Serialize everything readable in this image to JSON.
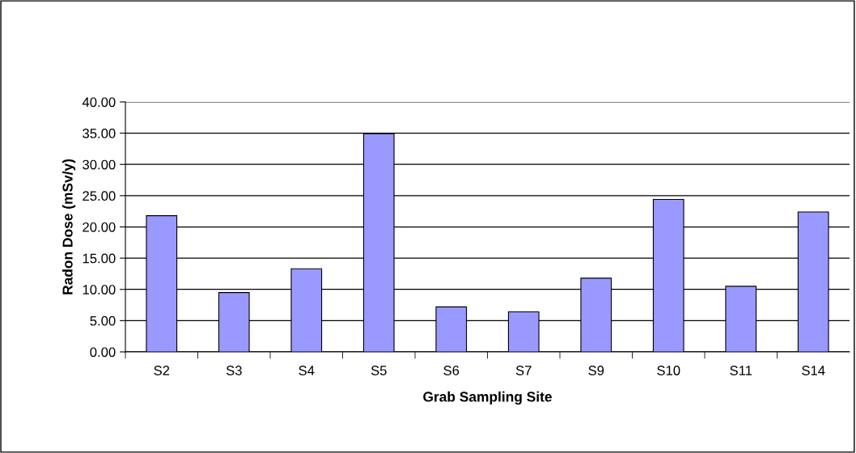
{
  "chart_data": {
    "type": "bar",
    "xlabel": "Grab Sampling Site",
    "ylabel": "Radon Dose (mSv/y)",
    "categories": [
      "S2",
      "S3",
      "S4",
      "S5",
      "S6",
      "S7",
      "S9",
      "S10",
      "S11",
      "S14"
    ],
    "values": [
      21.8,
      9.5,
      13.3,
      34.9,
      7.2,
      6.4,
      11.8,
      24.4,
      10.5,
      22.4
    ],
    "color": "#9999ff",
    "ylim": [
      0,
      40
    ],
    "yticks": [
      {
        "value": 0,
        "label": "0.00"
      },
      {
        "value": 5,
        "label": "5.00"
      },
      {
        "value": 10,
        "label": "10.00"
      },
      {
        "value": 15,
        "label": "15.00"
      },
      {
        "value": 20,
        "label": "20.00"
      },
      {
        "value": 25,
        "label": "25.00"
      },
      {
        "value": 30,
        "label": "30.00"
      },
      {
        "value": 35,
        "label": "35.00"
      },
      {
        "value": 40,
        "label": "40.00"
      }
    ],
    "grid": "y",
    "legend": false
  }
}
